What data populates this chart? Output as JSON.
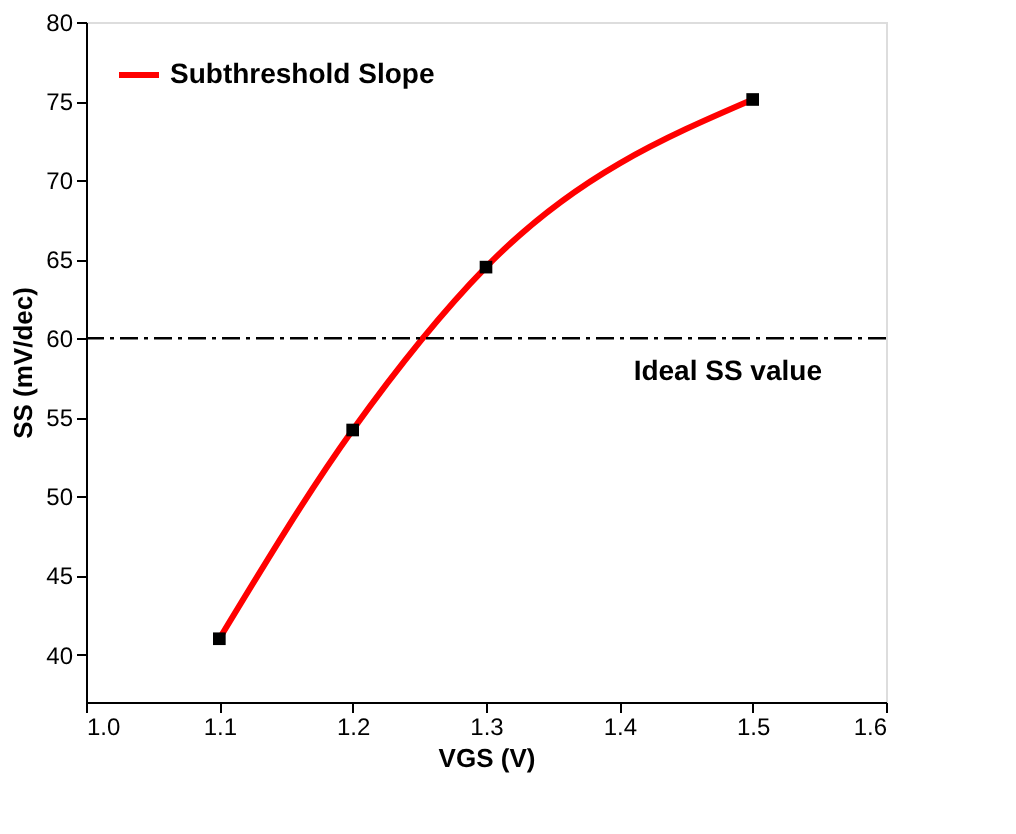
{
  "chart_data": {
    "type": "line",
    "xlabel": "VGS (V)",
    "ylabel": "SS (mV/dec)",
    "x": [
      1.1,
      1.2,
      1.3,
      1.5
    ],
    "series": [
      {
        "name": "Subthreshold Slope",
        "color": "#ff0000",
        "values": [
          41.0,
          54.2,
          64.5,
          75.1
        ]
      }
    ],
    "xlim": [
      1.0,
      1.6
    ],
    "xticks": [
      {
        "value": 1.0,
        "label": "1.0"
      },
      1.1,
      1.2,
      1.3,
      1.4,
      1.5,
      1.6
    ],
    "ylim": [
      37,
      80
    ],
    "yticks": [
      40,
      45,
      50,
      55,
      60,
      65,
      70,
      75,
      80
    ],
    "ref_lines": [
      {
        "axis": "y",
        "value": 60,
        "label": "Ideal SS value",
        "color": "#000000",
        "line_style": "dashed"
      }
    ],
    "marker": "square",
    "legend": "top left",
    "grid": false
  }
}
